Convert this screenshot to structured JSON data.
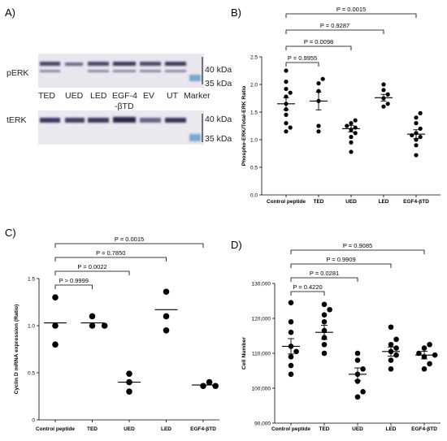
{
  "panels": {
    "a": "A)",
    "b": "B)",
    "c": "C)",
    "d": "D)"
  },
  "blot": {
    "top_row_label": "pERK",
    "bottom_row_label": "tERK",
    "lanes": [
      "TED",
      "UED",
      "LED",
      "EGF-4\n-βTD",
      "EV",
      "UT",
      "Marker"
    ],
    "lane_line1": [
      "TED",
      "UED",
      "LED",
      "EGF-4",
      "EV",
      "UT",
      "Marker"
    ],
    "lane_line2": [
      "",
      "",
      "",
      "-βTD",
      "",
      "",
      ""
    ],
    "kda_top": [
      "40 kDa",
      "35 kDa"
    ],
    "kda_bottom": [
      "40 kDa",
      "35 kDa"
    ]
  },
  "chart_data": [
    {
      "panel": "B",
      "type": "scatter",
      "categories": [
        "Control peptide",
        "TED",
        "UED",
        "LED",
        "EGF4-βTD"
      ],
      "ylabel": "Phospho-ERK/Total-ERK Ratio",
      "xlabel": "",
      "ylim": [
        0,
        2.5
      ],
      "yticks": [
        "0.0",
        "0.5",
        "1.0",
        "1.5",
        "2.0",
        "2.5"
      ],
      "ytick_values": [
        0,
        0.5,
        1.0,
        1.5,
        2.0,
        2.5
      ],
      "points": [
        [
          1.15,
          1.22,
          1.3,
          1.45,
          1.55,
          1.65,
          1.78,
          1.85,
          1.92,
          2.05,
          2.25
        ],
        [
          1.15,
          1.25,
          1.7,
          1.88,
          2.02,
          2.1
        ],
        [
          0.78,
          0.95,
          1.05,
          1.12,
          1.18,
          1.22,
          1.25,
          1.3,
          1.35
        ],
        [
          1.6,
          1.65,
          1.75,
          1.82,
          1.9,
          2.0
        ],
        [
          0.72,
          0.9,
          1.0,
          1.05,
          1.08,
          1.12,
          1.2,
          1.3,
          1.4,
          1.48
        ]
      ],
      "means": [
        1.65,
        1.7,
        1.2,
        1.76,
        1.1
      ],
      "sem": [
        0.11,
        0.16,
        0.06,
        0.06,
        0.08
      ],
      "comparisons": [
        {
          "label": "P = 0.9955",
          "to": 1
        },
        {
          "label": "P = 0.0098",
          "to": 2
        },
        {
          "label": "P = 0.9287",
          "to": 3
        },
        {
          "label": "P = 0.0015",
          "to": 4
        }
      ]
    },
    {
      "panel": "C",
      "type": "scatter",
      "categories": [
        "Control peptide",
        "TED",
        "UED",
        "LED",
        "EGF4-βTD"
      ],
      "ylabel": "Cyclin D mRNA expression (Ratio)",
      "xlabel": "",
      "ylim": [
        0,
        1.5
      ],
      "yticks": [
        "0",
        "0.5",
        "1.0",
        "1.5"
      ],
      "ytick_values": [
        0,
        0.5,
        1.0,
        1.5
      ],
      "points": [
        [
          0.8,
          1.0,
          1.3
        ],
        [
          1.0,
          1.0,
          1.1
        ],
        [
          0.3,
          0.4,
          0.49
        ],
        [
          0.95,
          1.1,
          1.36
        ],
        [
          0.36,
          0.36,
          0.4
        ]
      ],
      "means": [
        1.03,
        1.03,
        0.4,
        1.17,
        0.37
      ],
      "sem": null,
      "comparisons": [
        {
          "label": "P > 0.9999",
          "to": 1
        },
        {
          "label": "P = 0.0022",
          "to": 2
        },
        {
          "label": "P = 0.7850",
          "to": 3
        },
        {
          "label": "P = 0.0015",
          "to": 4
        }
      ]
    },
    {
      "panel": "D",
      "type": "scatter",
      "categories": [
        "Control peptide",
        "TED",
        "UED",
        "LED",
        "EGF4-βTD"
      ],
      "ylabel": "Cell Number",
      "xlabel": "",
      "ylim": [
        90000,
        130000
      ],
      "yticks": [
        "90,000",
        "100,000",
        "110,000",
        "120,000",
        "130,000"
      ],
      "ytick_values": [
        90000,
        100000,
        110000,
        120000,
        130000
      ],
      "points": [
        [
          104000,
          106500,
          109000,
          110500,
          112000,
          116000,
          119000,
          124500
        ],
        [
          110000,
          112500,
          114500,
          116500,
          119000,
          121000,
          122500,
          124000
        ],
        [
          97500,
          99000,
          102000,
          104000,
          105500,
          108000,
          110000
        ],
        [
          105500,
          108000,
          109500,
          110500,
          111500,
          112500,
          114000,
          117500
        ],
        [
          105500,
          107000,
          109000,
          109500,
          110000,
          111500,
          112500
        ]
      ],
      "means": [
        112000,
        116000,
        104000,
        110500,
        109500
      ],
      "sem": [
        2200,
        2000,
        1800,
        1300,
        1100
      ],
      "comparisons": [
        {
          "label": "P = 0.4220",
          "to": 1
        },
        {
          "label": "P = 0.0281",
          "to": 2
        },
        {
          "label": "P = 0.9909",
          "to": 3
        },
        {
          "label": "P = 0.9085",
          "to": 4
        }
      ]
    }
  ]
}
